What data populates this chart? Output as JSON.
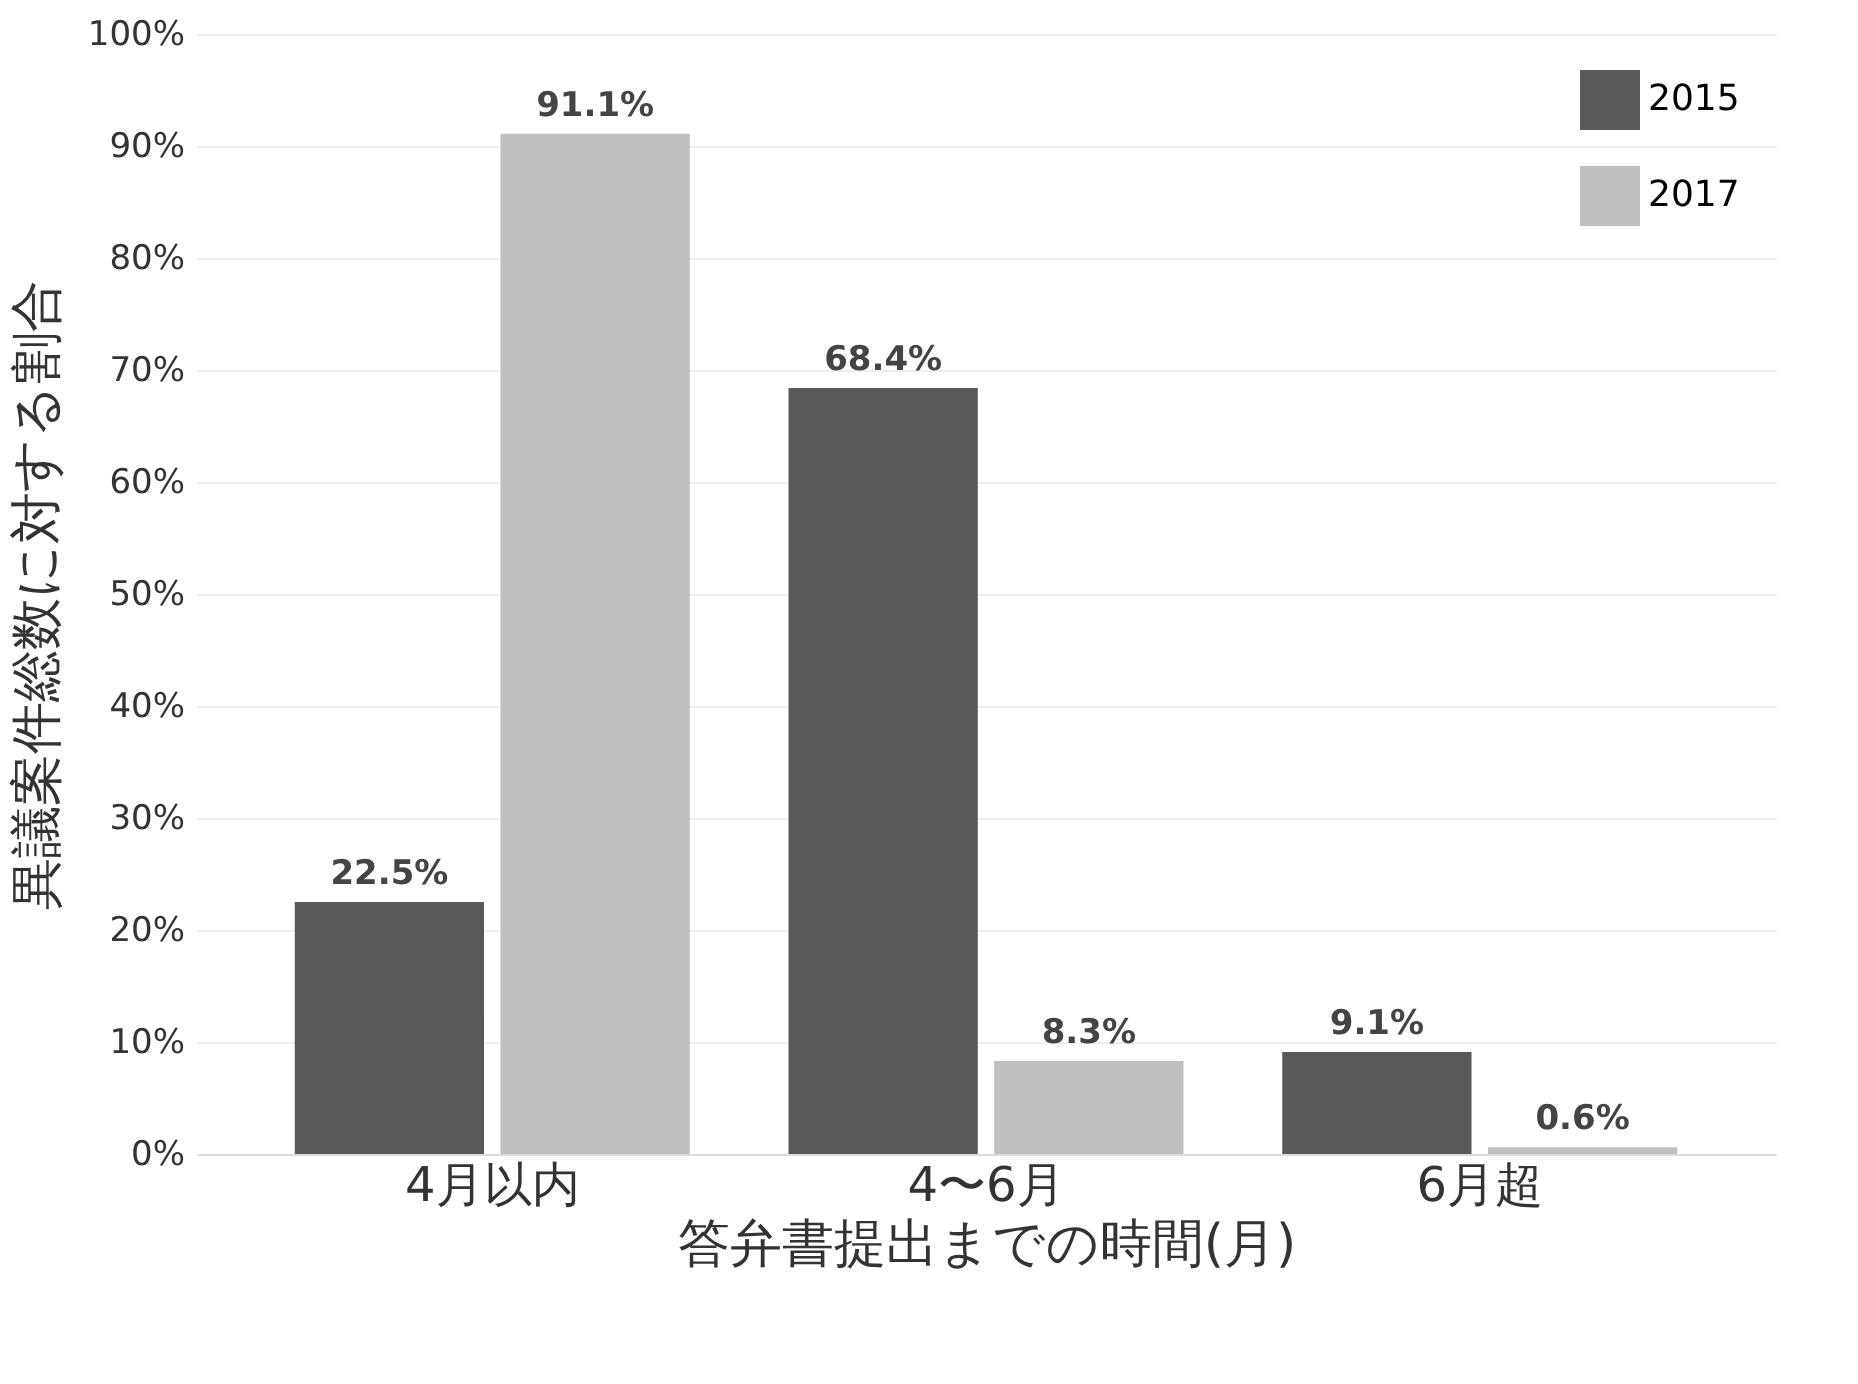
{
  "chart_data": {
    "type": "bar",
    "xlabel": "答弁書提出までの時間(月)",
    "ylabel": "異議案件総数に対する割合",
    "categories": [
      "4月以内",
      "4〜6月",
      "6月超"
    ],
    "series": [
      {
        "name": "2015",
        "color": "#595959",
        "values": [
          22.5,
          68.4,
          9.1
        ],
        "value_labels": [
          "22.5%",
          "68.4%",
          "9.1%"
        ]
      },
      {
        "name": "2017",
        "color": "#bfbfbf",
        "values": [
          91.1,
          8.3,
          0.6
        ],
        "value_labels": [
          "91.1%",
          "8.3%",
          "0.6%"
        ]
      }
    ],
    "ylim": [
      0,
      100
    ],
    "yticks": [
      {
        "value": 0,
        "label": "0%"
      },
      {
        "value": 10,
        "label": "10%"
      },
      {
        "value": 20,
        "label": "20%"
      },
      {
        "value": 30,
        "label": "30%"
      },
      {
        "value": 40,
        "label": "40%"
      },
      {
        "value": 50,
        "label": "50%"
      },
      {
        "value": 60,
        "label": "60%"
      },
      {
        "value": 70,
        "label": "70%"
      },
      {
        "value": 80,
        "label": "80%"
      },
      {
        "value": 90,
        "label": "90%"
      },
      {
        "value": 100,
        "label": "100%"
      }
    ],
    "grid": "y",
    "legend": "top right"
  }
}
